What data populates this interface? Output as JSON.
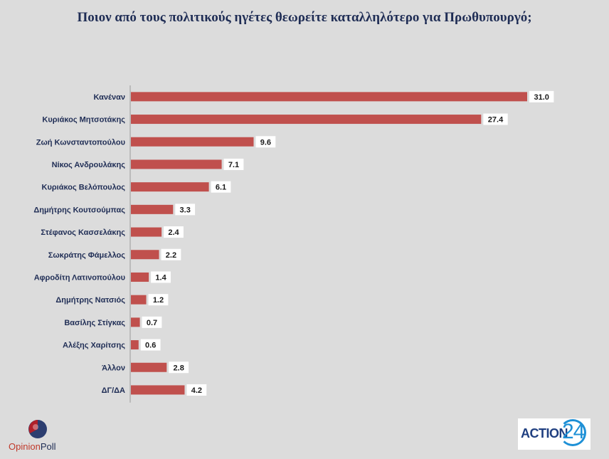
{
  "chart_data": {
    "type": "bar",
    "orientation": "horizontal",
    "title": "Ποιον από τους πολιτικούς ηγέτες θεωρείτε καταλληλότερο για Πρωθυπουργό;",
    "categories": [
      "Κανέναν",
      "Κυριάκος Μητσοτάκης",
      "Ζωή Κωνσταντοπούλου",
      "Νίκος Ανδρουλάκης",
      "Κυριάκος Βελόπουλος",
      "Δημήτρης Κουτσούμπας",
      "Στέφανος Κασσελάκης",
      "Σωκράτης Φάμελλος",
      "Αφροδίτη Λατινοπούλου",
      "Δημήτρης Νατσιός",
      "Βασίλης Στίγκας",
      "Αλέξης Χαρίτσης",
      "Άλλον",
      "ΔΓ/ΔΑ"
    ],
    "values": [
      31.0,
      27.4,
      9.6,
      7.1,
      6.1,
      3.3,
      2.4,
      2.2,
      1.4,
      1.2,
      0.7,
      0.6,
      2.8,
      4.2
    ],
    "value_labels": [
      "31.0",
      "27.4",
      "9.6",
      "7.1",
      "6.1",
      "3.3",
      "2.4",
      "2.2",
      "1.4",
      "1.2",
      "0.7",
      "0.6",
      "2.8",
      "4.2"
    ],
    "xlim": [
      0,
      33
    ],
    "grid": false,
    "legend": "none",
    "bar_color": "#c0504d"
  },
  "logos": {
    "opinionpoll": {
      "part1": "Opinion",
      "part2": "Poll"
    },
    "action24": {
      "word": "ACTION",
      "number": "24"
    }
  },
  "colors": {
    "background": "#dcdcdc",
    "title": "#1f2d55",
    "bar": "#c0504d"
  }
}
